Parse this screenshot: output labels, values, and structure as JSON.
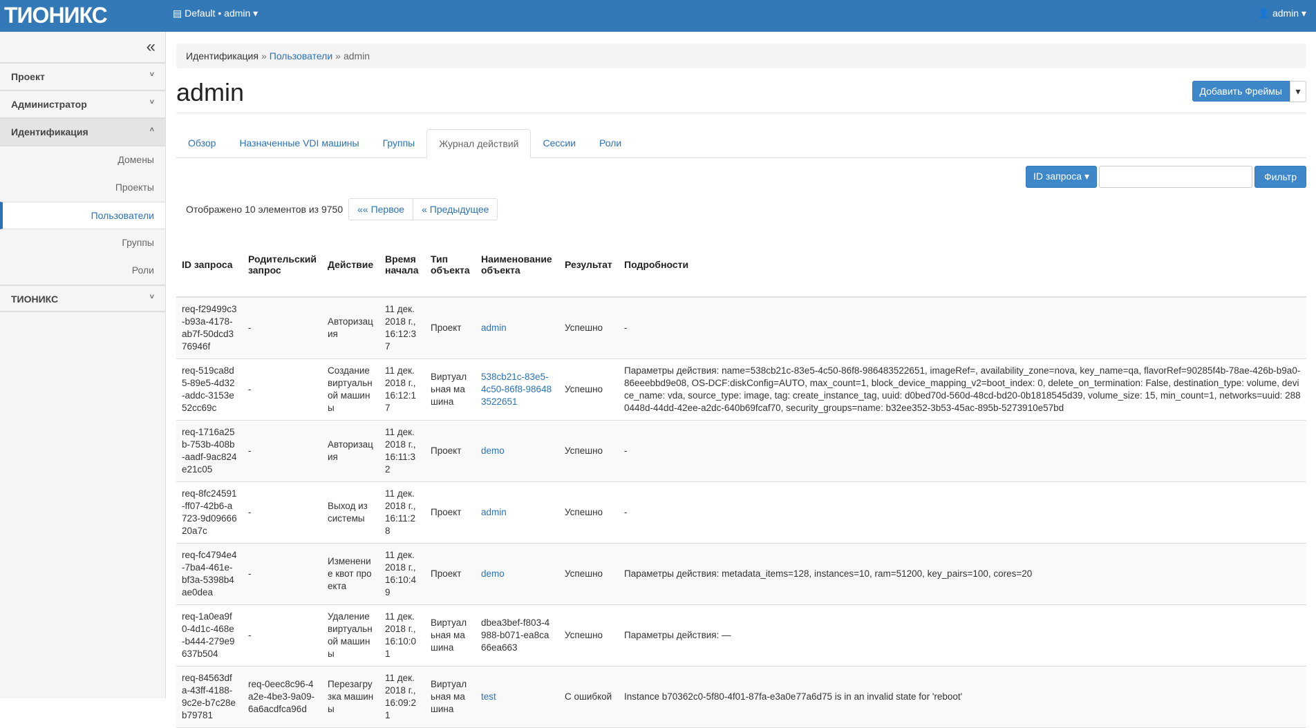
{
  "topbar": {
    "logo": "ТИОНИКС",
    "project": "Default • admin ▾",
    "user": "admin ▾"
  },
  "sidebar": {
    "collapse": "«",
    "sections": [
      {
        "label": "Проект",
        "chevron": "˅"
      },
      {
        "label": "Администратор",
        "chevron": "˅"
      },
      {
        "label": "Идентификация",
        "chevron": "˄"
      }
    ],
    "sub_items": [
      "Домены",
      "Проекты",
      "Пользователи",
      "Группы",
      "Роли"
    ],
    "last_section": {
      "label": "ТИОНИКС",
      "chevron": "˅"
    }
  },
  "breadcrumb": {
    "root": "Идентификация",
    "link": "Пользователи",
    "current": "admin",
    "sep": "»"
  },
  "page_title": "admin",
  "add_button": "Добавить Фреймы",
  "add_caret": "▾",
  "tabs": [
    "Обзор",
    "Назначенные VDI машины",
    "Группы",
    "Журнал действий",
    "Сессии",
    "Роли"
  ],
  "filter": {
    "select": "ID запроса ▾",
    "value": "",
    "button": "Фильтр"
  },
  "pager": {
    "count": "Отображено 10 элементов из 9750",
    "first": "«« Первое",
    "prev": "« Предыдущее"
  },
  "table": {
    "headers": [
      "ID запроса",
      "Родительский запрос",
      "Действие",
      "Время начала",
      "Тип объекта",
      "Наименование объекта",
      "Результат",
      "Подробности"
    ],
    "rows": [
      [
        "req-f29499c3-b93a-4178-ab7f-50dcd376946f",
        "-",
        "Авторизация",
        "11 дек. 2018 г., 16:12:37",
        "Проект",
        "admin",
        "Успешно",
        "-"
      ],
      [
        "req-519ca8d5-89e5-4d32-addc-3153e52cc69c",
        "-",
        "Создание виртуальной машины",
        "11 дек. 2018 г., 16:12:17",
        "Виртуальная машина",
        "538cb21c-83e5-4c50-86f8-986483522651",
        "Успешно",
        "Параметры действия: name=538cb21c-83e5-4c50-86f8-986483522651, imageRef=, availability_zone=nova, key_name=qa, flavorRef=90285f4b-78ae-426b-b9a0-86eeebbd9e08, OS-DCF:diskConfig=AUTO, max_count=1, block_device_mapping_v2=boot_index: 0, delete_on_termination: False, destination_type: volume, device_name: vda, source_type: image, tag: create_instance_tag, uuid: d0bed70d-560d-48cd-bd20-0b1818545d39, volume_size: 15, min_count=1, networks=uuid: 2880448d-44dd-42ee-a2dc-640b69fcaf70, security_groups=name: b32ee352-3b53-45ac-895b-5273910e57bd"
      ],
      [
        "req-1716a25b-753b-408b-aadf-9ac824e21c05",
        "-",
        "Авторизация",
        "11 дек. 2018 г., 16:11:32",
        "Проект",
        "demo",
        "Успешно",
        "-"
      ],
      [
        "req-8fc24591-ff07-42b6-a723-9d0966620a7c",
        "-",
        "Выход из системы",
        "11 дек. 2018 г., 16:11:28",
        "Проект",
        "admin",
        "Успешно",
        "-"
      ],
      [
        "req-fc4794e4-7ba4-461e-bf3a-5398b4ae0dea",
        "-",
        "Изменение квот проекта",
        "11 дек. 2018 г., 16:10:49",
        "Проект",
        "demo",
        "Успешно",
        "Параметры действия: metadata_items=128, instances=10, ram=51200, key_pairs=100, cores=20"
      ],
      [
        "req-1a0ea9f0-4d1c-468e-b444-279e9637b504",
        "-",
        "Удаление виртуальной машины",
        "11 дек. 2018 г., 16:10:01",
        "Виртуальная машина",
        "dbea3bef-f803-4988-b071-ea8ca66ea663",
        "Успешно",
        "Параметры действия: —"
      ],
      [
        "req-84563dfa-43ff-4188-9c2e-b7c28eb79781",
        "req-0eec8c96-4a2e-4be3-9a09-6a6acdfca96d",
        "Перезагрузка машины",
        "11 дек. 2018 г., 16:09:21",
        "Виртуальная машина",
        "test",
        "С ошибкой",
        "Instance b70362c0-5f80-4f01-87fa-e3a0e77a6d75 is in an invalid state for 'reboot'"
      ]
    ],
    "linked_names": [
      true,
      true,
      true,
      true,
      true,
      false,
      true
    ]
  },
  "colors": {
    "topbar": "#3479b7",
    "link": "#2a72b8",
    "button": "#3e87c9"
  }
}
